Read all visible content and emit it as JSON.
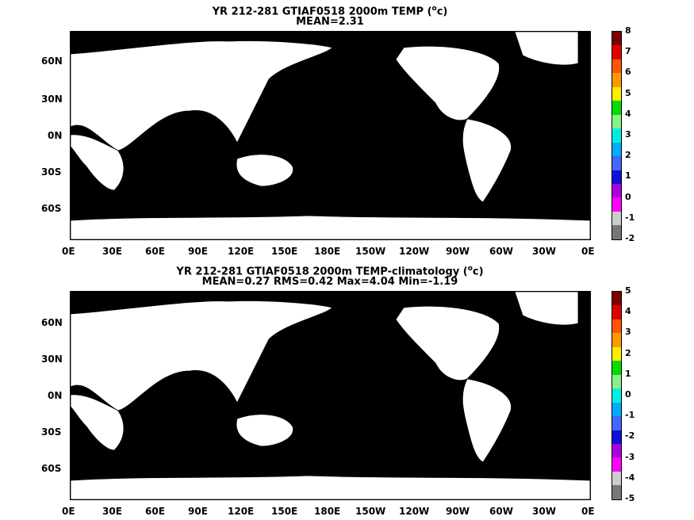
{
  "panels": [
    {
      "title_line1_pre": "YR 212-281 GTIAF0518 2000m TEMP (",
      "title_line1_sup": "o",
      "title_line1_post": "c)",
      "title_line2": "MEAN=2.31",
      "colorbar": {
        "labels": [
          "8",
          "7",
          "6",
          "5",
          "4",
          "3",
          "2",
          "1",
          "0",
          "-1",
          "-2"
        ],
        "colors": [
          "#7a0000",
          "#e00000",
          "#ff5500",
          "#ff9900",
          "#ffee00",
          "#00dd00",
          "#88f088",
          "#00f0e0",
          "#00aaff",
          "#4466ff",
          "#1010dd",
          "#aa00dd",
          "#ff00ff",
          "#cccccc",
          "#777777"
        ]
      }
    },
    {
      "title_line1_pre": "YR 212-281 GTIAF0518 2000m TEMP-climatology (",
      "title_line1_sup": "o",
      "title_line1_post": "c)",
      "title_line2": "MEAN=0.27   RMS=0.42   Max=4.04   Min=-1.19",
      "colorbar": {
        "labels": [
          "5",
          "4",
          "3",
          "2",
          "1",
          "0",
          "-1",
          "-2",
          "-3",
          "-4",
          "-5"
        ],
        "colors": [
          "#7a0000",
          "#e00000",
          "#ff5500",
          "#ff9900",
          "#ffee00",
          "#00dd00",
          "#88f088",
          "#00f0e0",
          "#00aaff",
          "#4466ff",
          "#1010dd",
          "#aa00dd",
          "#ff00ff",
          "#cccccc",
          "#777777"
        ]
      }
    }
  ],
  "axes": {
    "x_labels": [
      "0E",
      "30E",
      "60E",
      "90E",
      "120E",
      "150E",
      "180E",
      "150W",
      "120W",
      "90W",
      "60W",
      "30W",
      "0E"
    ],
    "y_labels": [
      "60N",
      "30N",
      "0N",
      "30S",
      "60S"
    ]
  },
  "colors": {
    "land": "#ffffff",
    "coast": "#000000",
    "top_ocean_main": "#00f0e0",
    "top_ocean_deep": "#00aaff",
    "top_ocean_south": "#4466ff",
    "top_arctic": "#aa00dd",
    "top_green": "#88f088",
    "top_bright_green": "#00dd00",
    "top_yellow": "#ffee00",
    "bot_ocean_main": "#88f088",
    "bot_green": "#00dd00",
    "bot_yellow": "#ffee00",
    "bot_cyan": "#00f0e0"
  }
}
